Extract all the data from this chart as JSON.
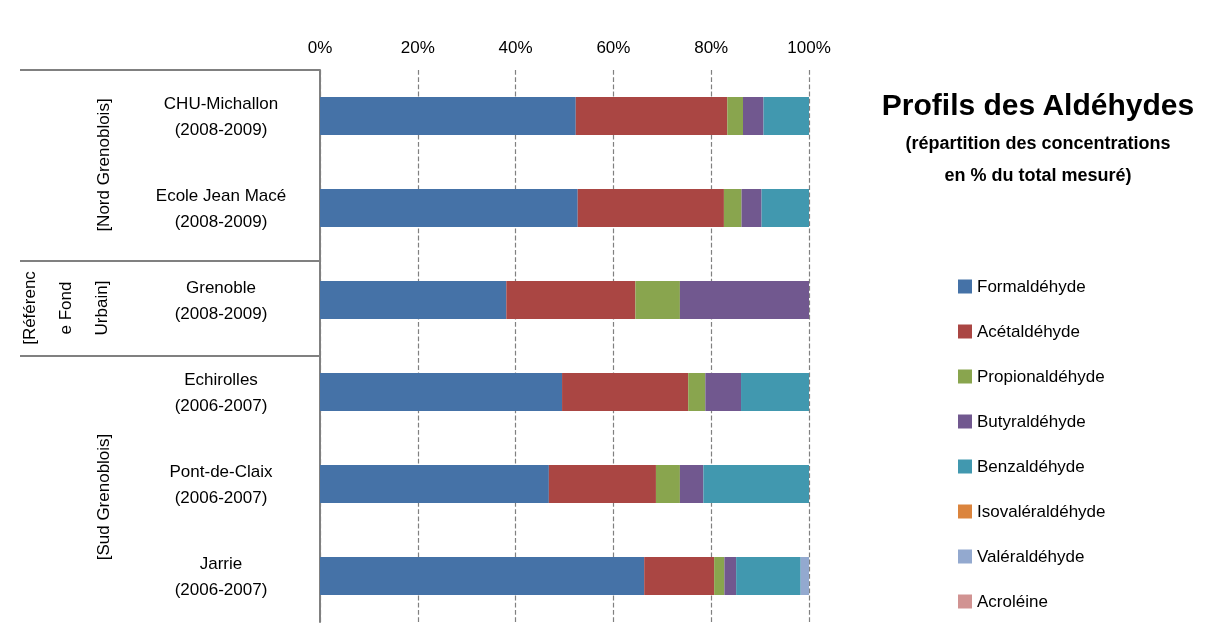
{
  "chart_data": {
    "type": "bar",
    "orientation": "horizontal",
    "stacked": true,
    "title": "Profils des Aldéhydes",
    "subtitle": "(répartition des concentrations\nen % du total mesuré)",
    "categories": [
      "CHU-Michallon\n(2008-2009)",
      "Ecole Jean Macé\n(2008-2009)",
      "Grenoble\n(2008-2009)",
      "Echirolles\n(2006-2007)",
      "Pont-de-Claix\n(2006-2007)",
      "Jarrie\n(2006-2007)"
    ],
    "series": [
      {
        "name": "Formaldéhyde",
        "color": "#4572a7",
        "values": [
          52.3,
          52.7,
          38.1,
          49.5,
          46.8,
          66.3
        ]
      },
      {
        "name": "Acétaldéhyde",
        "color": "#aa4643",
        "values": [
          31.0,
          29.9,
          26.4,
          25.8,
          21.9,
          14.3
        ]
      },
      {
        "name": "Propionaldéhyde",
        "color": "#89a54e",
        "values": [
          3.2,
          3.6,
          9.1,
          3.5,
          4.9,
          2.1
        ]
      },
      {
        "name": "Butyraldéhyde",
        "color": "#71588f",
        "values": [
          4.2,
          4.1,
          26.4,
          7.3,
          4.8,
          2.4
        ]
      },
      {
        "name": "Benzaldéhyde",
        "color": "#4198af",
        "values": [
          9.3,
          9.7,
          0,
          13.9,
          21.6,
          13.2
        ]
      },
      {
        "name": "Isovaléraldéhyde",
        "color": "#db843d",
        "values": [
          0,
          0,
          0,
          0,
          0,
          0
        ]
      },
      {
        "name": "Valéraldéhyde",
        "color": "#93a9cf",
        "values": [
          0,
          0,
          0,
          0,
          0,
          1.7
        ]
      },
      {
        "name": "Acroléine",
        "color": "#d19392",
        "values": [
          0,
          0,
          0,
          0,
          0,
          0
        ]
      }
    ],
    "xlim": [
      0,
      100
    ],
    "xticks": [
      {
        "value": 0,
        "label": "0%"
      },
      {
        "value": 20,
        "label": "20%"
      },
      {
        "value": 40,
        "label": "40%"
      },
      {
        "value": 60,
        "label": "60%"
      },
      {
        "value": 80,
        "label": "80%"
      },
      {
        "value": 100,
        "label": "100%"
      }
    ],
    "grid": "x",
    "legend": "right",
    "annotations": [
      "[Nord Grenoblois]",
      "[Référenc\ne Fond\nUrbain]",
      "[Sud Grenoblois]"
    ]
  }
}
